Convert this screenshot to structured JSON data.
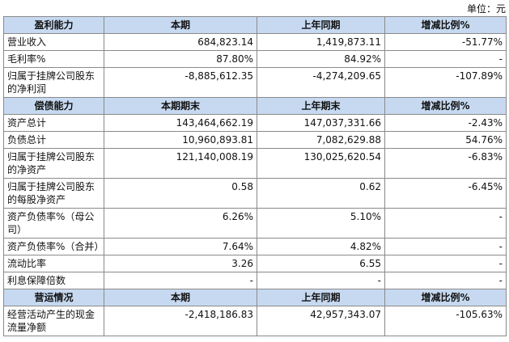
{
  "unit": "单位：元",
  "sections": [
    {
      "header": [
        "盈利能力",
        "本期",
        "上年同期",
        "增减比例%"
      ],
      "rows": [
        [
          "营业收入",
          "684,823.14",
          "1,419,873.11",
          "-51.77%"
        ],
        [
          "毛利率%",
          "87.80%",
          "84.92%",
          "-"
        ],
        [
          "归属于挂牌公司股东的净利润",
          "-8,885,612.35",
          "-4,274,209.65",
          "-107.89%"
        ]
      ]
    },
    {
      "header": [
        "偿债能力",
        "本期期末",
        "上年期末",
        "增减比例%"
      ],
      "rows": [
        [
          "资产总计",
          "143,464,662.19",
          "147,037,331.66",
          "-2.43%"
        ],
        [
          "负债总计",
          "10,960,893.81",
          "7,082,629.88",
          "54.76%"
        ],
        [
          "归属于挂牌公司股东的净资产",
          "121,140,008.19",
          "130,025,620.54",
          "-6.83%"
        ],
        [
          "归属于挂牌公司股东的每股净资产",
          "0.58",
          "0.62",
          "-6.45%"
        ],
        [
          "资产负债率%（母公司）",
          "6.26%",
          "5.10%",
          "-"
        ],
        [
          "资产负债率%（合并）",
          "7.64%",
          "4.82%",
          "-"
        ],
        [
          "流动比率",
          "3.26",
          "6.55",
          "-"
        ],
        [
          "利息保障倍数",
          "-",
          "-",
          "-"
        ]
      ]
    },
    {
      "header": [
        "营运情况",
        "本期",
        "上年同期",
        "增减比例%"
      ],
      "rows": [
        [
          "经营活动产生的现金流量净额",
          "-2,418,186.83",
          "42,957,343.07",
          "-105.63%"
        ]
      ]
    }
  ]
}
